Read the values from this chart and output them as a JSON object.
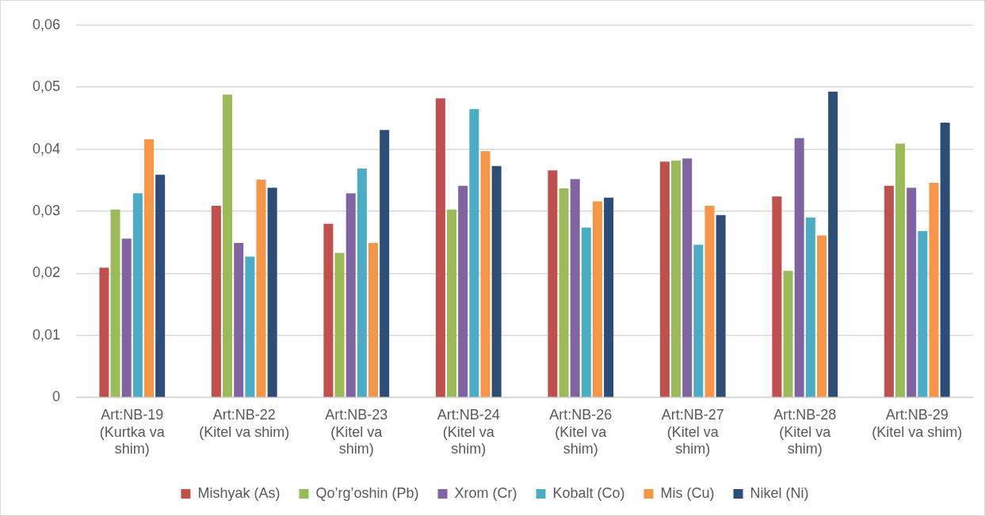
{
  "chart_data": {
    "type": "bar",
    "categories": [
      "Art:NB-19\n(Kurtka va\nshim)",
      "Art:NB-22\n(Kitel va shim)",
      "Art:NB-23\n(Kitel va\nshim)",
      "Art:NB-24\n(Kitel va\nshim)",
      "Art:NB-26\n(Kitel va\nshim)",
      "Art:NB-27\n(Kitel va\nshim)",
      "Art:NB-28\n(Kitel va\nshim)",
      "Art:NB-29\n(Kitel va shim)"
    ],
    "series": [
      {
        "name": "Mishyak (As)",
        "color": "#c0504d",
        "values": [
          0.0209,
          0.0309,
          0.028,
          0.0482,
          0.0366,
          0.038,
          0.0324,
          0.0341
        ]
      },
      {
        "name": "Qo’rg’oshin (Pb)",
        "color": "#9bbb59",
        "values": [
          0.0303,
          0.0488,
          0.0233,
          0.0303,
          0.0337,
          0.0382,
          0.0204,
          0.0409
        ]
      },
      {
        "name": "Xrom (Cr)",
        "color": "#8064a2",
        "values": [
          0.0256,
          0.0249,
          0.0329,
          0.0341,
          0.0352,
          0.0385,
          0.0418,
          0.0338
        ]
      },
      {
        "name": "Kobalt (Co)",
        "color": "#4bacc6",
        "values": [
          0.0329,
          0.0227,
          0.0369,
          0.0465,
          0.0274,
          0.0246,
          0.029,
          0.0268
        ]
      },
      {
        "name": "Mis (Cu)",
        "color": "#f79646",
        "values": [
          0.0416,
          0.0351,
          0.0249,
          0.0397,
          0.0316,
          0.0309,
          0.0261,
          0.0346
        ]
      },
      {
        "name": "Nikel (Ni)",
        "color": "#2c4d75",
        "values": [
          0.0359,
          0.0338,
          0.0431,
          0.0373,
          0.0322,
          0.0294,
          0.0493,
          0.0443
        ]
      }
    ],
    "ylim": [
      0,
      0.06
    ],
    "yticks": [
      {
        "value": 0,
        "label": "0"
      },
      {
        "value": 0.01,
        "label": "0,01"
      },
      {
        "value": 0.02,
        "label": "0,02"
      },
      {
        "value": 0.03,
        "label": "0,03"
      },
      {
        "value": 0.04,
        "label": "0,04"
      },
      {
        "value": 0.05,
        "label": "0,05"
      },
      {
        "value": 0.06,
        "label": "0,06"
      }
    ],
    "grid": "y",
    "legend": "bottom"
  }
}
